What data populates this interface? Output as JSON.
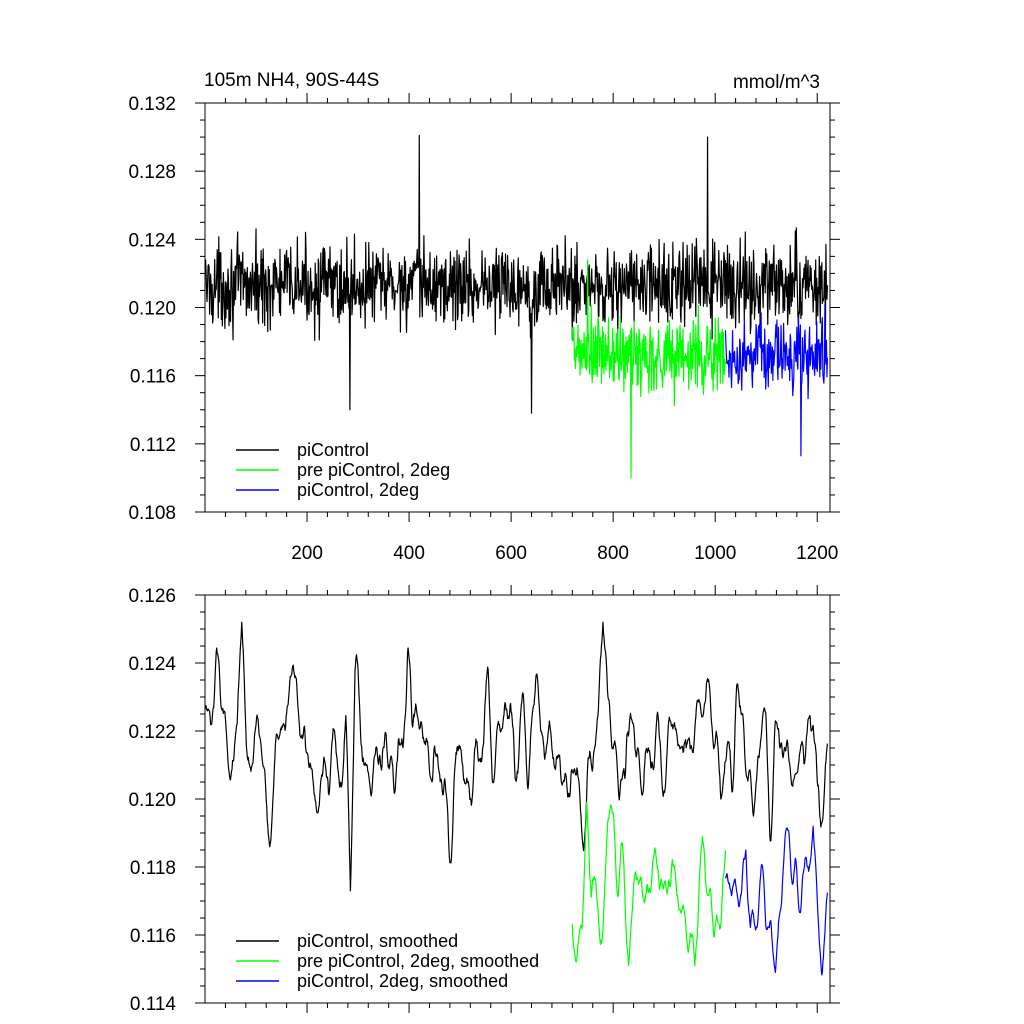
{
  "figure": {
    "title": "105m NH4, 90S-44S",
    "units": "mmol/m^3"
  },
  "chart_data": [
    {
      "type": "line",
      "title": "105m NH4, 90S-44S",
      "units": "mmol/m^3",
      "xlim": [
        0,
        1225
      ],
      "ylim": [
        0.108,
        0.132
      ],
      "xticks": [
        200,
        400,
        600,
        800,
        1000,
        1200
      ],
      "xtick_labels": [
        "200",
        "400",
        "600",
        "800",
        "1000",
        "1200"
      ],
      "yticks": [
        0.108,
        0.112,
        0.116,
        0.12,
        0.124,
        0.128,
        0.132
      ],
      "ytick_labels": [
        "0.108",
        "0.112",
        "0.116",
        "0.120",
        "0.124",
        "0.128",
        "0.132"
      ],
      "show_xtick_labels": true,
      "grid": false,
      "legend_position": "bottom-left",
      "series": [
        {
          "name": "piControl",
          "color": "#000000",
          "x_start": 1,
          "x_end": 1220,
          "mean": 0.1213,
          "amplitude": 0.0036,
          "smoothed": false,
          "highlights": [
            [
              284,
              0.114
            ],
            [
              420,
              0.1301
            ],
            [
              640,
              0.1138
            ],
            [
              985,
              0.13
            ]
          ]
        },
        {
          "name": "pre piControl, 2deg",
          "color": "#00ff00",
          "x_start": 720,
          "x_end": 1020,
          "mean": 0.1172,
          "amplitude": 0.0036,
          "smoothed": false,
          "highlights": [
            [
              835,
              0.11
            ],
            [
              750,
              0.1228
            ]
          ]
        },
        {
          "name": "piControl, 2deg",
          "color": "#0000ff",
          "x_start": 1020,
          "x_end": 1220,
          "mean": 0.1172,
          "amplitude": 0.003,
          "smoothed": false,
          "highlights": [
            [
              1168,
              0.1113
            ],
            [
              1215,
              0.1202
            ]
          ]
        }
      ]
    },
    {
      "type": "line",
      "title": "",
      "xlim": [
        0,
        1225
      ],
      "ylim": [
        0.114,
        0.126
      ],
      "xticks": [
        200,
        400,
        600,
        800,
        1000,
        1200
      ],
      "xtick_labels": [],
      "yticks": [
        0.114,
        0.116,
        0.118,
        0.12,
        0.122,
        0.124,
        0.126
      ],
      "ytick_labels": [
        "0.114",
        "0.116",
        "0.118",
        "0.120",
        "0.122",
        "0.124",
        "0.126"
      ],
      "show_xtick_labels": false,
      "grid": false,
      "legend_position": "bottom-left",
      "series": [
        {
          "name": "piControl, smoothed",
          "color": "#000000",
          "x_start": 1,
          "x_end": 1220,
          "mean": 0.1215,
          "amplitude": 0.0013,
          "smoothed": true,
          "highlights": [
            [
              72,
              0.1252
            ],
            [
              285,
              0.1173
            ],
            [
              780,
              0.1252
            ],
            [
              555,
              0.1238
            ],
            [
              1205,
              0.1195
            ]
          ]
        },
        {
          "name": "pre piControl, 2deg, smoothed",
          "color": "#00ff00",
          "x_start": 720,
          "x_end": 1020,
          "mean": 0.1172,
          "amplitude": 0.0011,
          "smoothed": true,
          "highlights": [
            [
              722,
              0.1157
            ],
            [
              748,
              0.1199
            ],
            [
              830,
              0.1151
            ],
            [
              960,
              0.1151
            ],
            [
              975,
              0.1189
            ]
          ]
        },
        {
          "name": "piControl, 2deg, smoothed",
          "color": "#0000ff",
          "x_start": 1020,
          "x_end": 1220,
          "mean": 0.1171,
          "amplitude": 0.001,
          "smoothed": true,
          "highlights": [
            [
              1060,
              0.1185
            ],
            [
              1118,
              0.1149
            ],
            [
              1192,
              0.1192
            ],
            [
              1210,
              0.1149
            ]
          ]
        }
      ]
    }
  ]
}
